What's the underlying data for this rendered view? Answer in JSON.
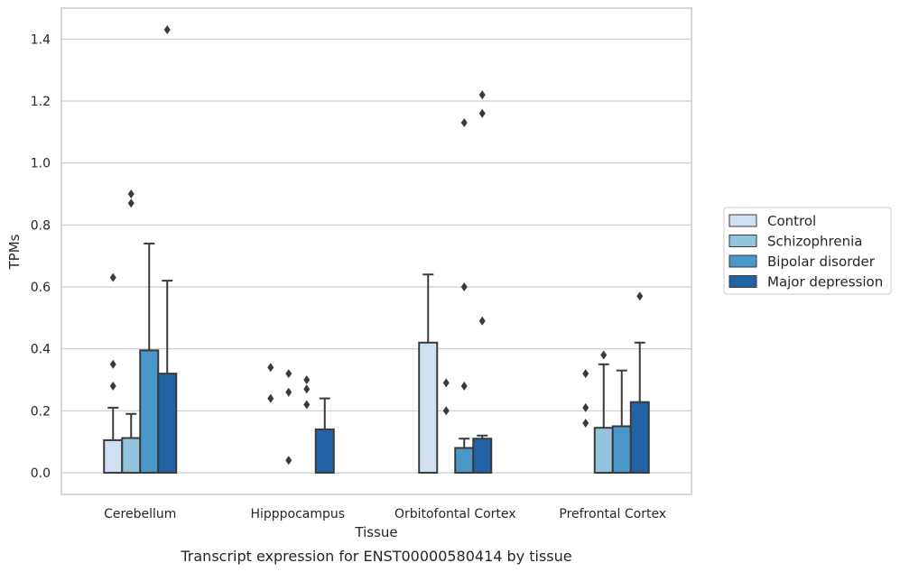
{
  "chart_data": {
    "type": "bar",
    "title": "",
    "caption": "Transcript expression for ENST00000580414 by tissue",
    "xlabel": "Tissue",
    "ylabel": "TPMs",
    "ylim": [
      -0.07,
      1.5
    ],
    "yticks": [
      "0.0",
      "0.2",
      "0.4",
      "0.6",
      "0.8",
      "1.0",
      "1.2",
      "1.4"
    ],
    "grid": "horizontal",
    "legend_position": "right",
    "categories": [
      "Cerebellum",
      "Hipppocampus",
      "Orbitofontal Cortex",
      "Prefrontal Cortex"
    ],
    "series": [
      {
        "name": "Control",
        "color": "#cfe1f2",
        "values": [
          0.105,
          0.0,
          0.42,
          0.0
        ],
        "whisker_upper": [
          0.21,
          null,
          0.64,
          null
        ],
        "outliers": [
          [
            0.28,
            0.35,
            0.63
          ],
          [
            0.24,
            0.34
          ],
          [],
          [
            0.16,
            0.21,
            0.32
          ]
        ]
      },
      {
        "name": "Schizophrenia",
        "color": "#93c4de",
        "values": [
          0.112,
          0.0,
          0.0,
          0.145
        ],
        "whisker_upper": [
          0.19,
          null,
          null,
          0.35
        ],
        "outliers": [
          [
            0.87,
            0.9
          ],
          [
            0.04,
            0.26,
            0.32
          ],
          [
            0.2,
            0.29
          ],
          [
            0.38
          ]
        ]
      },
      {
        "name": "Bipolar disorder",
        "color": "#4a98c9",
        "values": [
          0.395,
          0.0,
          0.08,
          0.15
        ],
        "whisker_upper": [
          0.74,
          null,
          0.11,
          0.33
        ],
        "outliers": [
          [],
          [
            0.22,
            0.27,
            0.3
          ],
          [
            0.28,
            0.6,
            1.13
          ],
          []
        ]
      },
      {
        "name": "Major depression",
        "color": "#2163a5",
        "values": [
          0.32,
          0.14,
          0.11,
          0.228
        ],
        "whisker_upper": [
          0.62,
          0.24,
          0.12,
          0.42
        ],
        "outliers": [
          [
            1.43
          ],
          [],
          [
            0.49,
            1.16,
            1.22
          ],
          [
            0.57
          ]
        ]
      }
    ]
  }
}
